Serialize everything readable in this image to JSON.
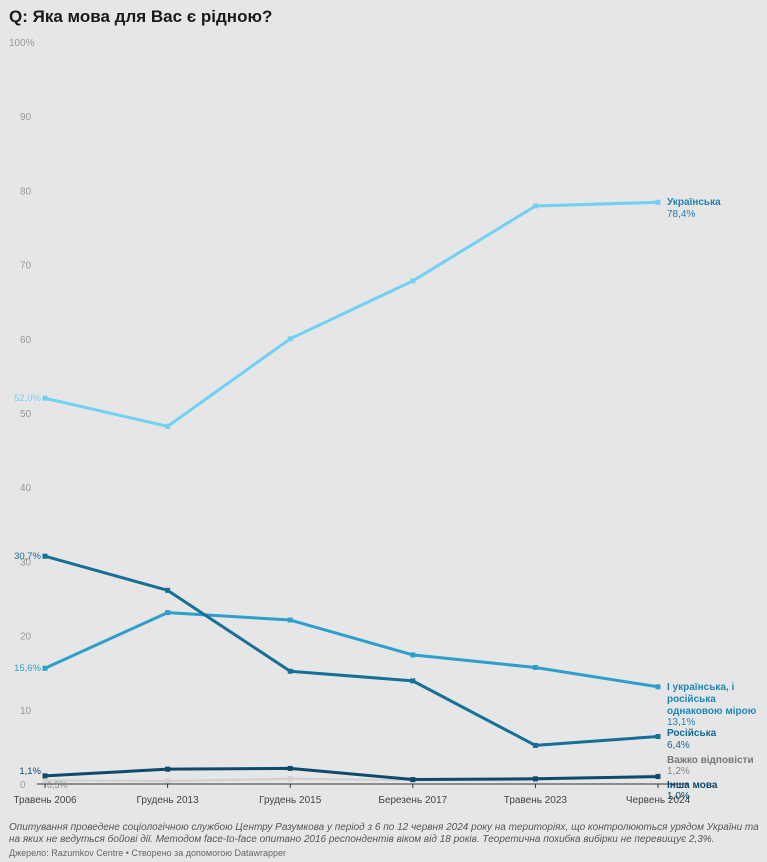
{
  "title": "Q: Яка мова для Вас є рідною?",
  "footnote": "Опитування проведене соціологічною службою Центру Разумкова у період з 6 по 12 червня 2024 року на територіях, що контролюються урядом України та на яких не ведуться бойові дії. Методом face-to-face опитано 2016 респондентів віком від 18 років. Теоретична похибка вибірки не перевищує 2,3%.",
  "source": "Джерело: Razumkov Centre • Створено за допомогою Datawrapper",
  "colors": {
    "ukrainian": "#6fd1f5",
    "both": "#2c9fcc",
    "russian": "#156f96",
    "other": "#0d4a6e",
    "hard": "#cfcfcf",
    "grid_text": "#999999"
  },
  "chart_data": {
    "type": "line",
    "x": [
      "Травень 2006",
      "Грудень 2013",
      "Грудень 2015",
      "Березень 2017",
      "Травень 2023",
      "Червень 2024"
    ],
    "ylim": [
      0,
      100
    ],
    "yticks": [
      0,
      10,
      20,
      30,
      40,
      50,
      60,
      70,
      80,
      90,
      100
    ],
    "ytick_labels": [
      "0",
      "10",
      "20",
      "30",
      "40",
      "50",
      "60",
      "70",
      "80",
      "90",
      "100%"
    ],
    "zero_note": "0,5%",
    "series": [
      {
        "key": "ukrainian",
        "name": "Українська",
        "values": [
          52.0,
          48.2,
          60.0,
          67.8,
          77.9,
          78.4
        ],
        "start_label": "52,0%",
        "end_value_label": "78,4%"
      },
      {
        "key": "both",
        "name": "І українська, і російська однаковою мірою",
        "name_lines": [
          "І українська, і",
          "російська",
          "однаковою мірою"
        ],
        "values": [
          15.6,
          23.1,
          22.1,
          17.4,
          15.7,
          13.1
        ],
        "start_label": "15,6%",
        "end_value_label": "13,1%"
      },
      {
        "key": "russian",
        "name": "Російська",
        "values": [
          30.7,
          26.1,
          15.2,
          13.9,
          5.2,
          6.4
        ],
        "start_label": "30,7%",
        "end_value_label": "6,4%"
      },
      {
        "key": "hard",
        "name": "Важко відповісти",
        "values": [
          0.5,
          0.4,
          0.7,
          0.5,
          0.5,
          1.2
        ],
        "start_label": "",
        "end_value_label": "1,2%"
      },
      {
        "key": "other",
        "name": "Інша мова",
        "values": [
          1.1,
          2.0,
          2.1,
          0.6,
          0.7,
          1.0
        ],
        "start_label": "1,1%",
        "end_value_label": "1,0%"
      }
    ]
  }
}
